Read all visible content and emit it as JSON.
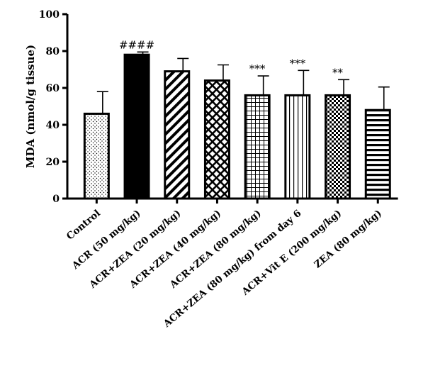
{
  "chart_data": {
    "type": "bar",
    "title": "",
    "xlabel": "",
    "ylabel": "MDA (nmol/g tissue)",
    "ylim": [
      0,
      100
    ],
    "yticks": [
      0,
      20,
      40,
      60,
      80,
      100
    ],
    "grid": false,
    "categories": [
      "Control",
      "ACR (50 mg/kg)",
      "ACR+ZEA (20 mg/kg)",
      "ACR+ZEA (40 mg/kg)",
      "ACR+ZEA (80 mg/kg)",
      "ACR+ZEA (80 mg/kg) from day 6",
      "ACR+Vit E (200 mg/kg)",
      "ZEA (80 mg/kg)"
    ],
    "values": [
      46,
      78,
      69,
      64,
      56,
      56,
      56,
      48
    ],
    "errors": [
      12,
      1.5,
      7,
      8.5,
      10.5,
      13.5,
      8.5,
      12.5
    ],
    "patterns": [
      "dots",
      "solid",
      "diagonal",
      "crosshatch",
      "grid",
      "vertical",
      "checker",
      "horizontal"
    ],
    "annotations": [
      "",
      "####",
      "",
      "",
      "***",
      "***",
      "**",
      ""
    ]
  }
}
